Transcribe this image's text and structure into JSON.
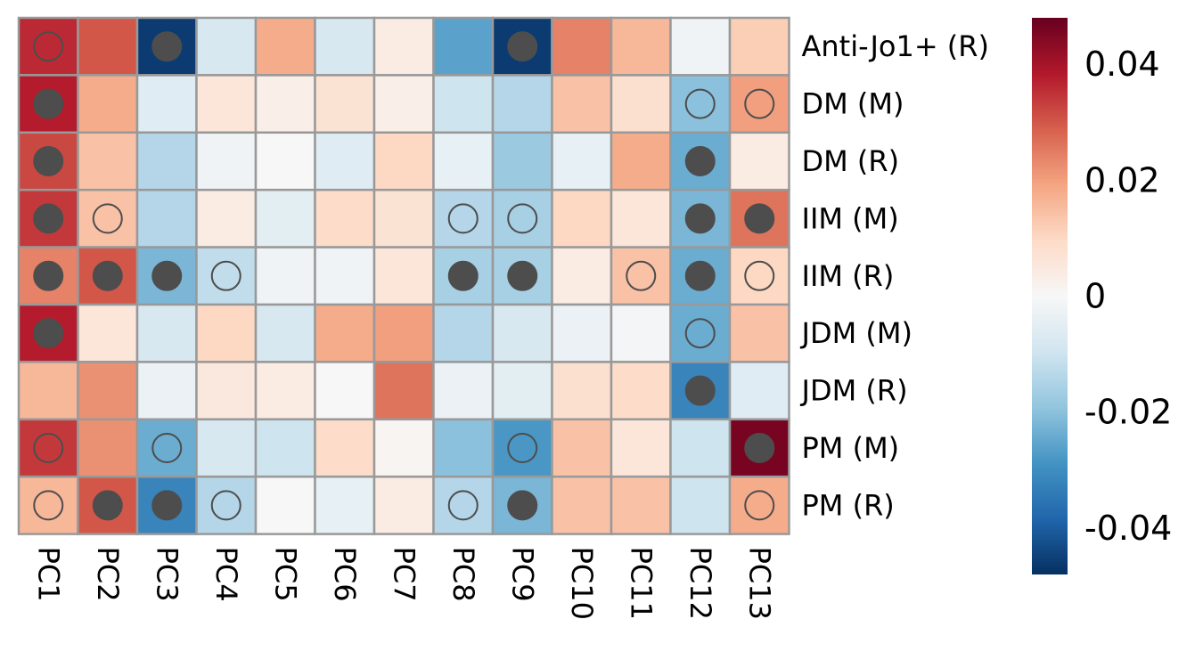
{
  "chart_data": {
    "type": "heatmap",
    "title": "",
    "xlabel": "",
    "ylabel": "",
    "rows": [
      "Anti-Jo1+ (R)",
      "DM (M)",
      "DM (R)",
      "IIM (M)",
      "IIM (R)",
      "JDM (M)",
      "JDM (R)",
      "PM (M)",
      "PM (R)"
    ],
    "columns": [
      "PC1",
      "PC2",
      "PC3",
      "PC4",
      "PC5",
      "PC6",
      "PC7",
      "PC8",
      "PC9",
      "PC10",
      "PC11",
      "PC12",
      "PC13"
    ],
    "values": [
      [
        0.036,
        0.03,
        -0.046,
        -0.008,
        0.018,
        -0.008,
        0.004,
        -0.026,
        -0.046,
        0.024,
        0.016,
        -0.002,
        0.012
      ],
      [
        0.038,
        0.018,
        -0.006,
        0.006,
        0.003,
        0.007,
        0.003,
        -0.01,
        -0.014,
        0.014,
        0.008,
        -0.02,
        0.02
      ],
      [
        0.032,
        0.014,
        -0.014,
        -0.002,
        0.0,
        -0.006,
        0.01,
        -0.004,
        -0.018,
        -0.004,
        0.018,
        -0.024,
        0.004
      ],
      [
        0.034,
        0.014,
        -0.014,
        0.004,
        -0.005,
        0.009,
        0.007,
        -0.014,
        -0.016,
        0.01,
        0.006,
        -0.022,
        0.026
      ],
      [
        0.024,
        0.03,
        -0.022,
        -0.012,
        -0.002,
        -0.002,
        0.006,
        -0.016,
        -0.016,
        0.004,
        0.014,
        -0.024,
        0.01
      ],
      [
        0.038,
        0.006,
        -0.008,
        0.01,
        -0.008,
        0.018,
        0.02,
        -0.014,
        -0.008,
        -0.003,
        -0.001,
        -0.024,
        0.014
      ],
      [
        0.016,
        0.022,
        -0.003,
        0.005,
        0.004,
        0.0,
        0.026,
        -0.003,
        -0.005,
        0.008,
        0.009,
        -0.032,
        -0.006
      ],
      [
        0.034,
        0.022,
        -0.024,
        -0.008,
        -0.01,
        0.009,
        0.001,
        -0.02,
        -0.028,
        0.014,
        0.006,
        -0.01,
        0.046
      ],
      [
        0.016,
        0.03,
        -0.032,
        -0.014,
        0.0,
        -0.004,
        0.004,
        -0.014,
        -0.022,
        0.014,
        0.014,
        -0.01,
        0.018
      ]
    ],
    "markers": [
      [
        "open",
        null,
        "filled",
        null,
        null,
        null,
        null,
        null,
        "filled",
        null,
        null,
        null,
        null
      ],
      [
        "filled",
        null,
        null,
        null,
        null,
        null,
        null,
        null,
        null,
        null,
        null,
        "open",
        "open"
      ],
      [
        "filled",
        null,
        null,
        null,
        null,
        null,
        null,
        null,
        null,
        null,
        null,
        "filled",
        null
      ],
      [
        "filled",
        "open",
        null,
        null,
        null,
        null,
        null,
        "open",
        "open",
        null,
        null,
        "filled",
        "filled"
      ],
      [
        "filled",
        "filled",
        "filled",
        "open",
        null,
        null,
        null,
        "filled",
        "filled",
        null,
        "open",
        "filled",
        "open"
      ],
      [
        "filled",
        null,
        null,
        null,
        null,
        null,
        null,
        null,
        null,
        null,
        null,
        "open",
        null
      ],
      [
        null,
        null,
        null,
        null,
        null,
        null,
        null,
        null,
        null,
        null,
        null,
        "filled",
        null
      ],
      [
        "open",
        null,
        "open",
        null,
        null,
        null,
        null,
        null,
        "open",
        null,
        null,
        null,
        "filled"
      ],
      [
        "open",
        "filled",
        "filled",
        "open",
        null,
        null,
        null,
        "open",
        "filled",
        null,
        null,
        null,
        "open"
      ]
    ],
    "color_range": [
      -0.048,
      0.048
    ],
    "colorbar_ticks": [
      {
        "value": 0.04,
        "label": "0.04"
      },
      {
        "value": 0.02,
        "label": "0.02"
      },
      {
        "value": 0,
        "label": "0"
      },
      {
        "value": -0.02,
        "label": "-0.02"
      },
      {
        "value": -0.04,
        "label": "-0.04"
      }
    ],
    "colormap": [
      "#053061",
      "#2166ac",
      "#4393c3",
      "#92c5de",
      "#d1e5f0",
      "#f7f7f7",
      "#fddbc7",
      "#f4a582",
      "#d6604d",
      "#b2182b",
      "#67001f"
    ],
    "grid_color": "#999999",
    "marker_color": "#4d4d4d",
    "legend": "right"
  }
}
